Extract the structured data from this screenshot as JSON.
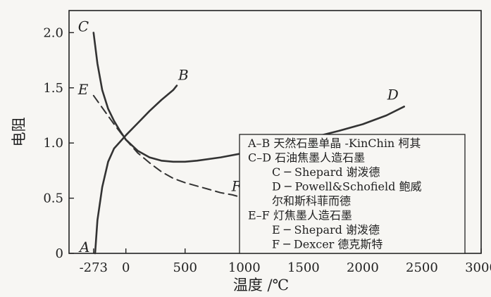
{
  "chart_data": {
    "type": "line",
    "xlabel": "温度 /℃",
    "ylabel": "电阻",
    "x_ticks": [
      "-273",
      "0",
      "500",
      "1000",
      "1500",
      "2000",
      "2500",
      "3000"
    ],
    "x_tick_values": [
      -273,
      0,
      500,
      1000,
      1500,
      2000,
      2500,
      3000
    ],
    "y_ticks": [
      "0",
      "0.5",
      "1.0",
      "1.5",
      "2.0"
    ],
    "y_tick_values": [
      0,
      0.5,
      1.0,
      1.5,
      2.0
    ],
    "xlim": [
      -480,
      3000
    ],
    "ylim": [
      0,
      2.2
    ],
    "grid": false,
    "legend_position": "bottom-right",
    "series": [
      {
        "name": "A–B",
        "start_label": "A",
        "end_label": "B",
        "style": "solid",
        "points": [
          [
            -260,
            0.0
          ],
          [
            -240,
            0.3
          ],
          [
            -200,
            0.6
          ],
          [
            -150,
            0.83
          ],
          [
            -100,
            0.95
          ],
          [
            0,
            1.07
          ],
          [
            100,
            1.18
          ],
          [
            200,
            1.29
          ],
          [
            300,
            1.39
          ],
          [
            400,
            1.48
          ],
          [
            430,
            1.52
          ]
        ]
      },
      {
        "name": "C–D",
        "start_label": "C",
        "end_label": "D",
        "style": "solid",
        "points": [
          [
            -273,
            2.0
          ],
          [
            -240,
            1.72
          ],
          [
            -200,
            1.48
          ],
          [
            -150,
            1.31
          ],
          [
            -100,
            1.2
          ],
          [
            -50,
            1.11
          ],
          [
            0,
            1.03
          ],
          [
            100,
            0.93
          ],
          [
            200,
            0.87
          ],
          [
            300,
            0.84
          ],
          [
            400,
            0.83
          ],
          [
            500,
            0.83
          ],
          [
            600,
            0.84
          ],
          [
            800,
            0.87
          ],
          [
            1000,
            0.91
          ],
          [
            1200,
            0.96
          ],
          [
            1500,
            1.03
          ],
          [
            1800,
            1.11
          ],
          [
            2000,
            1.17
          ],
          [
            2200,
            1.25
          ],
          [
            2350,
            1.33
          ]
        ]
      },
      {
        "name": "E–F",
        "start_label": "E",
        "end_label": "F",
        "style": "dashed",
        "points": [
          [
            -273,
            1.43
          ],
          [
            -200,
            1.32
          ],
          [
            -100,
            1.17
          ],
          [
            0,
            1.03
          ],
          [
            100,
            0.91
          ],
          [
            200,
            0.82
          ],
          [
            300,
            0.74
          ],
          [
            400,
            0.68
          ],
          [
            500,
            0.64
          ],
          [
            600,
            0.61
          ],
          [
            700,
            0.58
          ],
          [
            800,
            0.55
          ],
          [
            900,
            0.53
          ],
          [
            1000,
            0.5
          ]
        ]
      }
    ],
    "legend": [
      {
        "series": "A–B",
        "text": "A–B 天然石墨单晶 -KinChin 柯其",
        "indent": false
      },
      {
        "series": "C–D",
        "text": "C–D 石油焦墨人造石墨",
        "indent": false
      },
      {
        "series": "C",
        "text": "C ─ Shepard 谢泼德",
        "indent": true
      },
      {
        "series": "D",
        "text": "D ─ Powell&Schofield 鲍威",
        "indent": true
      },
      {
        "series": "",
        "text": "尔和斯科菲而德",
        "indent": true
      },
      {
        "series": "E–F",
        "text": "E–F 灯焦墨人造石墨",
        "indent": false
      },
      {
        "series": "E",
        "text": "E ─ Shepard 谢泼德",
        "indent": true
      },
      {
        "series": "F",
        "text": "F ─ Dexcer 德克斯特",
        "indent": true
      }
    ]
  }
}
